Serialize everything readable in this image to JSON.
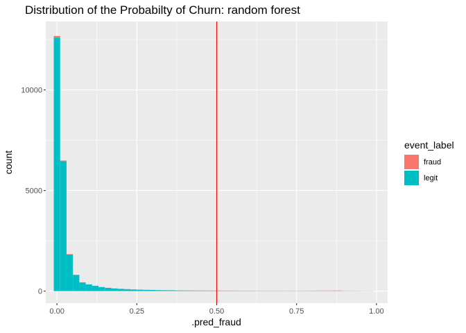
{
  "chart_data": {
    "type": "bar",
    "subtype": "stacked-histogram",
    "title": "Distribution of the Probabilty of Churn: random forest",
    "xlabel": ".pred_fraud",
    "ylabel": "count",
    "xlim": [
      -0.035,
      1.035
    ],
    "ylim": [
      -600,
      13400
    ],
    "x_ticks": [
      0.0,
      0.25,
      0.5,
      0.75,
      1.0
    ],
    "x_tick_labels": [
      "0.00",
      "0.25",
      "0.50",
      "0.75",
      "1.00"
    ],
    "y_ticks": [
      0,
      5000,
      10000
    ],
    "y_tick_labels": [
      "0",
      "5000",
      "10000"
    ],
    "grid": true,
    "legend_position": "right",
    "legend_title": "event_label",
    "bin_centers": [
      0.0,
      0.02,
      0.04,
      0.06,
      0.08,
      0.1,
      0.12,
      0.14,
      0.16,
      0.18,
      0.2,
      0.22,
      0.24,
      0.26,
      0.28,
      0.3,
      0.32,
      0.34,
      0.36,
      0.38,
      0.4,
      0.42,
      0.44,
      0.46,
      0.48,
      0.5,
      0.52,
      0.54,
      0.56,
      0.58,
      0.6,
      0.62,
      0.64,
      0.66,
      0.68,
      0.7,
      0.72,
      0.74,
      0.76,
      0.78,
      0.8,
      0.82,
      0.84,
      0.86,
      0.88,
      0.9,
      0.92,
      0.94,
      0.96,
      0.98
    ],
    "bin_width": 0.02,
    "series": [
      {
        "name": "legit",
        "values": [
          12600,
          6450,
          1820,
          800,
          430,
          330,
          260,
          200,
          160,
          130,
          110,
          95,
          80,
          70,
          60,
          55,
          48,
          42,
          38,
          34,
          30,
          28,
          26,
          24,
          22,
          20,
          19,
          18,
          17,
          16,
          15,
          14,
          13,
          12,
          11,
          10,
          9,
          9,
          8,
          8,
          7,
          7,
          6,
          6,
          5,
          5,
          4,
          4,
          3,
          3
        ]
      },
      {
        "name": "fraud",
        "values": [
          80,
          40,
          20,
          10,
          8,
          6,
          5,
          5,
          4,
          4,
          4,
          4,
          4,
          4,
          4,
          4,
          4,
          4,
          4,
          4,
          5,
          5,
          5,
          5,
          5,
          6,
          6,
          6,
          6,
          6,
          7,
          7,
          8,
          8,
          8,
          9,
          9,
          10,
          12,
          14,
          16,
          18,
          20,
          22,
          24,
          12,
          10,
          8,
          6,
          5
        ]
      }
    ],
    "vline": {
      "x": 0.5,
      "color": "#ff0000"
    },
    "colors": {
      "fraud": "#F8766D",
      "legit": "#00BFC4",
      "panel": "#EBEBEB",
      "grid_major": "#FFFFFF"
    },
    "legend_items": [
      {
        "label": "fraud",
        "color": "#F8766D"
      },
      {
        "label": "legit",
        "color": "#00BFC4"
      }
    ]
  }
}
